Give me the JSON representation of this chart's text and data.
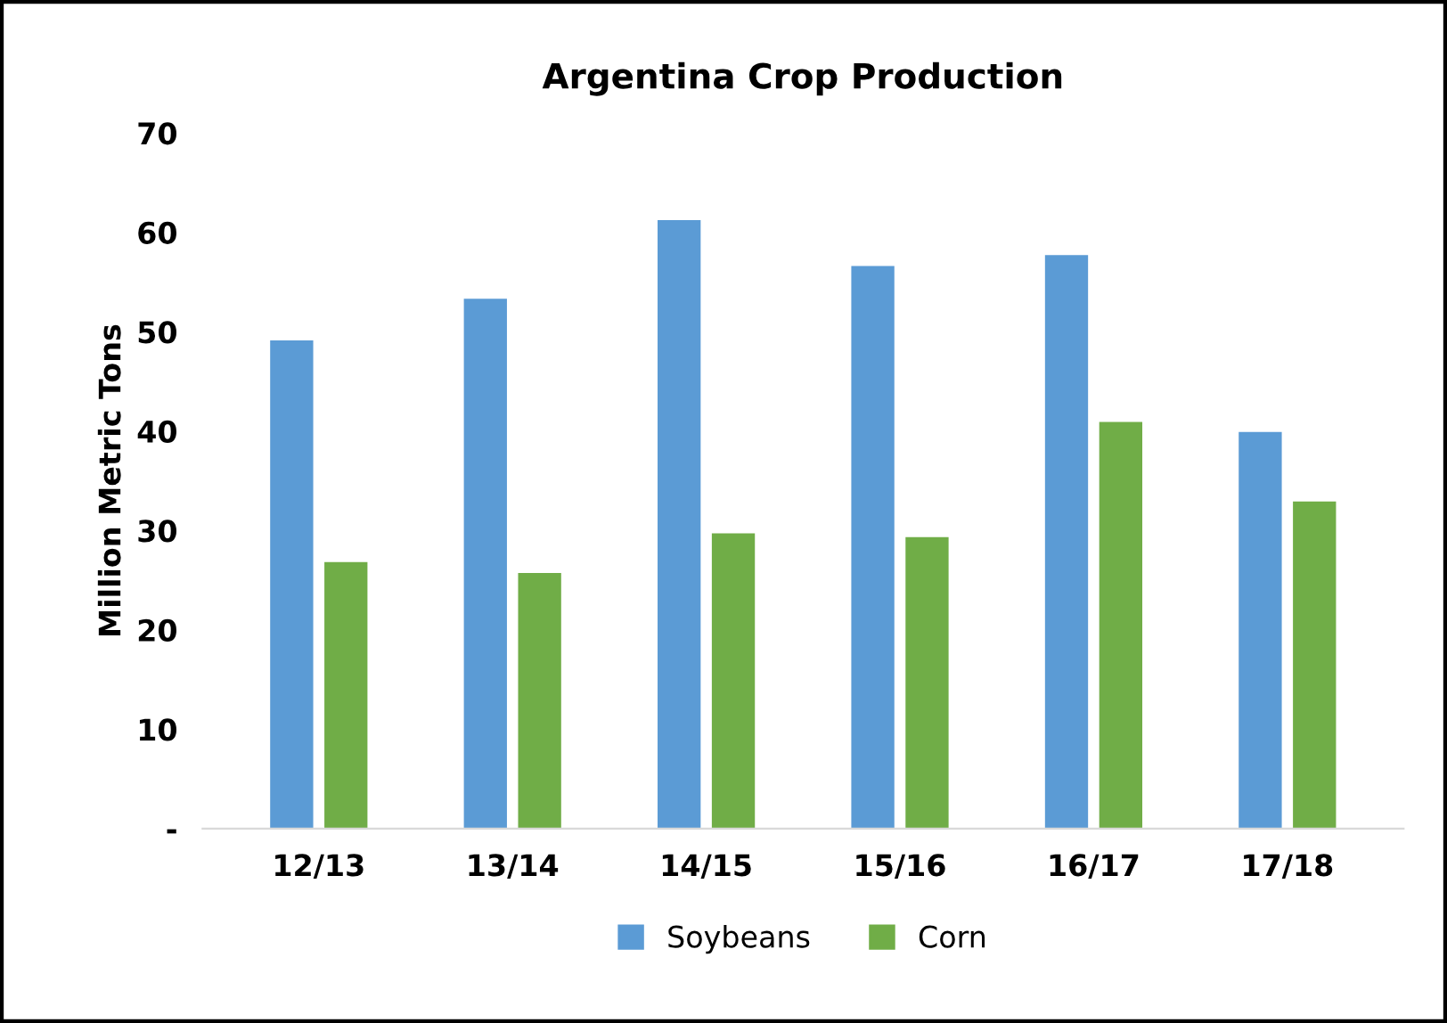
{
  "chart_data": {
    "type": "bar",
    "title": "Argentina Crop Production",
    "ylabel": "Million Metric Tons",
    "categories": [
      "12/13",
      "13/14",
      "14/15",
      "15/16",
      "16/17",
      "17/18"
    ],
    "series": [
      {
        "name": "Soybeans",
        "color": "#5b9bd5",
        "values": [
          49.2,
          53.4,
          61.3,
          56.7,
          57.8,
          40.0
        ]
      },
      {
        "name": "Corn",
        "color": "#70ad47",
        "values": [
          26.9,
          25.8,
          29.8,
          29.4,
          41.0,
          33.0
        ]
      }
    ],
    "ylim": [
      0,
      70
    ],
    "yticks": [
      {
        "value": 0,
        "label": "-"
      },
      10,
      20,
      30,
      40,
      50,
      60,
      70
    ],
    "grid": false,
    "legend": "bottom"
  }
}
